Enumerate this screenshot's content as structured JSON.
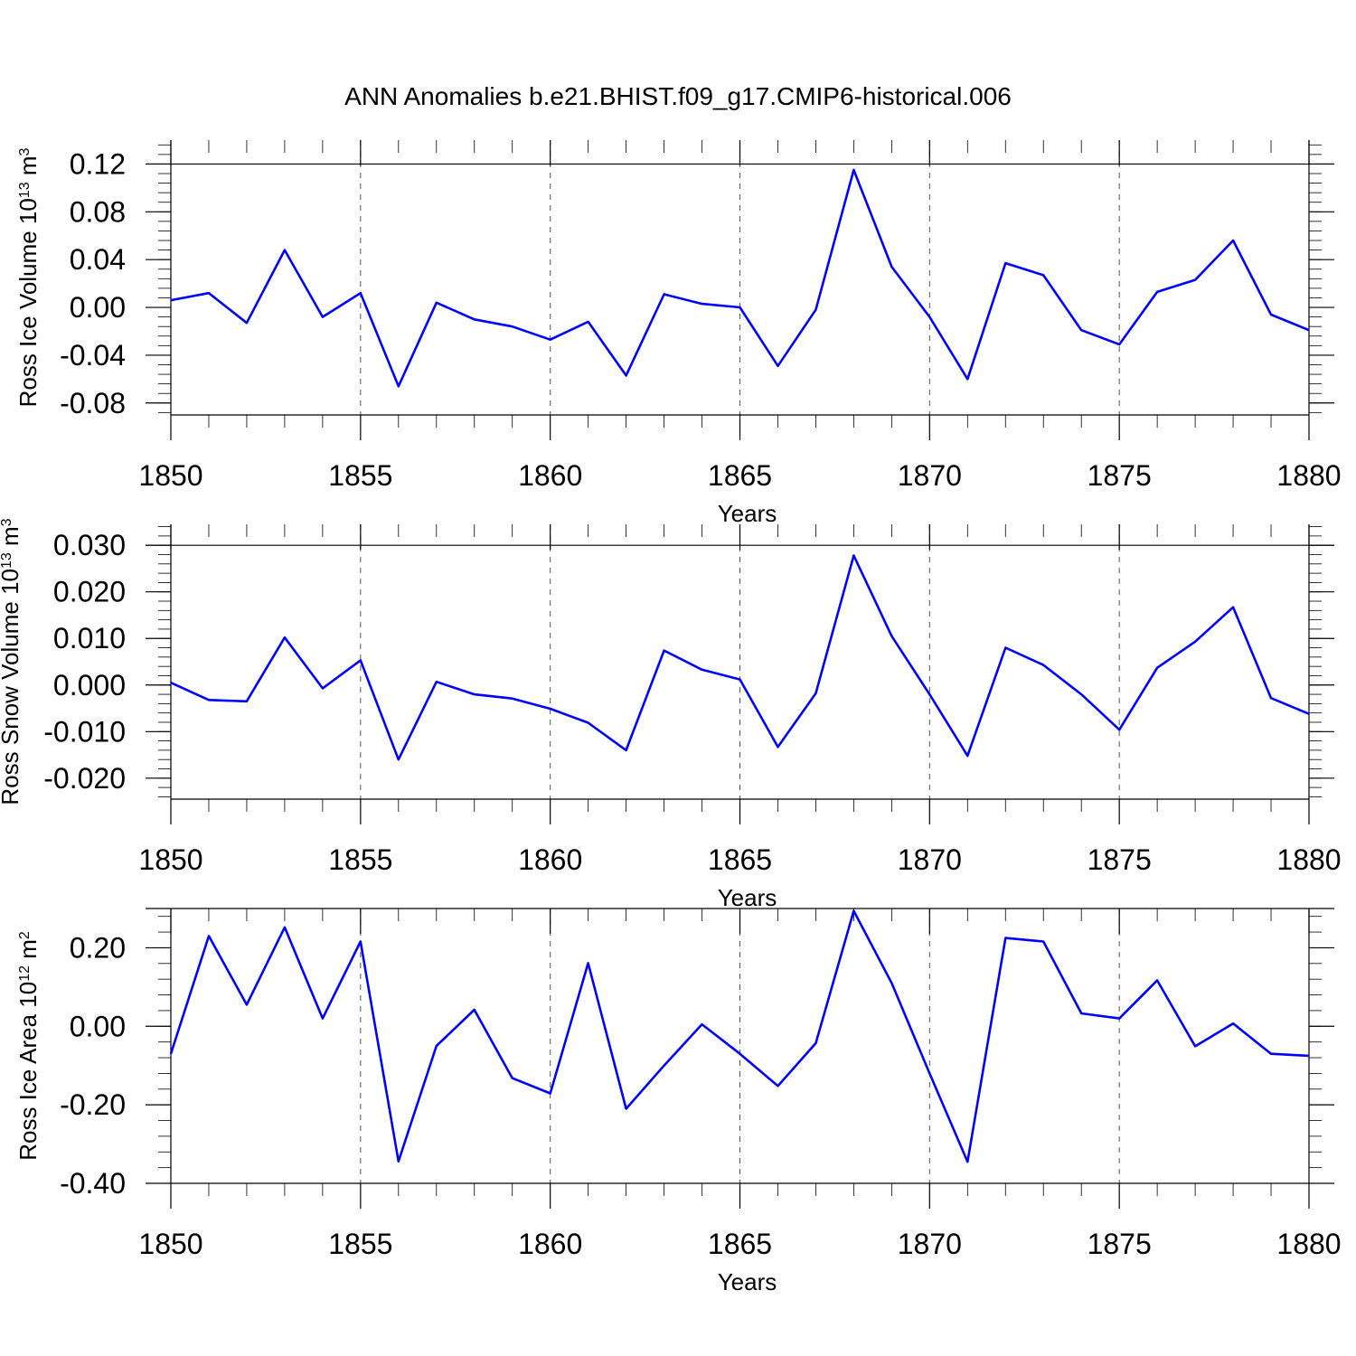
{
  "title": "ANN Anomalies b.e21.BHIST.f09_g17.CMIP6-historical.006",
  "colors": {
    "series": "#0000ff",
    "axis": "#000000",
    "grid": "#555555"
  },
  "chart_data": [
    {
      "type": "line",
      "ylabel": "Ross Ice Volume 10",
      "ylabel_exp": "13",
      "ylabel_unit": " m",
      "ylabel_unit_exp": "3",
      "xlabel": "Years",
      "xlim": [
        1850,
        1880
      ],
      "ylim": [
        -0.09,
        0.14
      ],
      "yticks": [
        0.12,
        0.08,
        0.04,
        0.0,
        -0.04,
        -0.08
      ],
      "ytick_labels": [
        "0.12",
        "0.08",
        "0.04",
        "0.00",
        "-0.04",
        "-0.08"
      ],
      "xticks": [
        1850,
        1855,
        1860,
        1865,
        1870,
        1875,
        1880
      ],
      "xtick_labels": [
        "1850",
        "1855",
        "1860",
        "1865",
        "1870",
        "1875",
        "1880"
      ],
      "reference_line": 0.12,
      "grid": "x-dashed",
      "series": [
        {
          "x": [
            1850,
            1851,
            1852,
            1853,
            1854,
            1855,
            1856,
            1857,
            1858,
            1859,
            1860,
            1861,
            1862,
            1863,
            1864,
            1865,
            1866,
            1867,
            1868,
            1869,
            1870,
            1871,
            1872,
            1873,
            1874,
            1875,
            1876,
            1877,
            1878,
            1879,
            1880
          ],
          "values": [
            0.006,
            0.012,
            -0.013,
            0.048,
            -0.008,
            0.012,
            -0.066,
            0.004,
            -0.01,
            -0.016,
            -0.027,
            -0.012,
            -0.057,
            0.011,
            0.003,
            0.0,
            -0.049,
            -0.002,
            0.115,
            0.034,
            -0.008,
            -0.06,
            0.037,
            0.027,
            -0.019,
            -0.031,
            0.013,
            0.023,
            0.056,
            -0.006,
            -0.019
          ]
        }
      ]
    },
    {
      "type": "line",
      "ylabel": "Ross Snow Volume 10",
      "ylabel_exp": "13",
      "ylabel_unit": " m",
      "ylabel_unit_exp": "3",
      "xlabel": "Years",
      "xlim": [
        1850,
        1880
      ],
      "ylim": [
        -0.0245,
        0.0345
      ],
      "yticks": [
        0.03,
        0.02,
        0.01,
        0.0,
        -0.01,
        -0.02
      ],
      "ytick_labels": [
        "0.030",
        "0.020",
        "0.010",
        "0.000",
        "-0.010",
        "-0.020"
      ],
      "xticks": [
        1850,
        1855,
        1860,
        1865,
        1870,
        1875,
        1880
      ],
      "xtick_labels": [
        "1850",
        "1855",
        "1860",
        "1865",
        "1870",
        "1875",
        "1880"
      ],
      "reference_line": 0.03,
      "grid": "x-dashed",
      "series": [
        {
          "x": [
            1850,
            1851,
            1852,
            1853,
            1854,
            1855,
            1856,
            1857,
            1858,
            1859,
            1860,
            1861,
            1862,
            1863,
            1864,
            1865,
            1866,
            1867,
            1868,
            1869,
            1870,
            1871,
            1872,
            1873,
            1874,
            1875,
            1876,
            1877,
            1878,
            1879,
            1880
          ],
          "values": [
            0.0005,
            -0.0032,
            -0.0035,
            0.0102,
            -0.0007,
            0.0053,
            -0.016,
            0.0007,
            -0.002,
            -0.0029,
            -0.0051,
            -0.0081,
            -0.014,
            0.0074,
            0.0033,
            0.0012,
            -0.0133,
            -0.0018,
            0.0278,
            0.0105,
            -0.002,
            -0.0152,
            0.008,
            0.0043,
            -0.002,
            -0.0096,
            0.0037,
            0.0093,
            0.0167,
            -0.0028,
            -0.0062
          ]
        }
      ]
    },
    {
      "type": "line",
      "ylabel": "Ross Ice Area 10",
      "ylabel_exp": "12",
      "ylabel_unit": " m",
      "ylabel_unit_exp": "2",
      "xlabel": "Years",
      "xlim": [
        1850,
        1880
      ],
      "ylim": [
        -0.4,
        0.3
      ],
      "yticks": [
        0.2,
        0.0,
        -0.2,
        -0.4
      ],
      "ytick_labels": [
        "0.20",
        "0.00",
        "-0.20",
        "-0.40"
      ],
      "xticks": [
        1850,
        1855,
        1860,
        1865,
        1870,
        1875,
        1880
      ],
      "xtick_labels": [
        "1850",
        "1855",
        "1860",
        "1865",
        "1870",
        "1875",
        "1880"
      ],
      "reference_line": 0.3,
      "grid": "x-dashed",
      "series": [
        {
          "x": [
            1850,
            1851,
            1852,
            1853,
            1854,
            1855,
            1856,
            1857,
            1858,
            1859,
            1860,
            1861,
            1862,
            1863,
            1864,
            1865,
            1866,
            1867,
            1868,
            1869,
            1870,
            1871,
            1872,
            1873,
            1874,
            1875,
            1876,
            1877,
            1878,
            1879,
            1880
          ],
          "values": [
            -0.07,
            0.23,
            0.055,
            0.252,
            0.02,
            0.216,
            -0.344,
            -0.05,
            0.042,
            -0.132,
            -0.171,
            0.161,
            -0.21,
            -0.1,
            0.005,
            -0.07,
            -0.152,
            -0.043,
            0.294,
            0.11,
            -0.12,
            -0.345,
            0.225,
            0.216,
            0.033,
            0.02,
            0.117,
            -0.051,
            0.007,
            -0.07,
            -0.075
          ]
        }
      ]
    }
  ]
}
